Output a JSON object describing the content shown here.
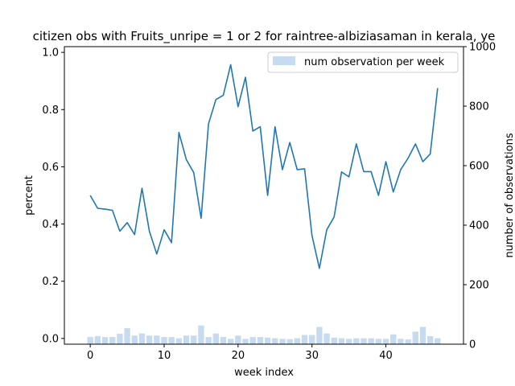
{
  "chart_data": {
    "type": "line",
    "title": "citizen obs with Fruits_unripe = 1 or 2 for raintree-albiziasaman in kerala, ye",
    "xlabel": "week index",
    "ylabel": "percent",
    "y2label": "number of observations",
    "xlim": [
      -3.5,
      50.5
    ],
    "ylim": [
      -0.02,
      1.02
    ],
    "y2lim": [
      0,
      1000
    ],
    "xticks": [
      "0",
      "10",
      "20",
      "30",
      "40"
    ],
    "yticks": [
      "0.0",
      "0.2",
      "0.4",
      "0.6",
      "0.8",
      "1.0"
    ],
    "y2ticks": [
      "0",
      "200",
      "400",
      "600",
      "800",
      "1000"
    ],
    "line_color": "#1f77b4",
    "bar_color": "#c6dbef",
    "legend": {
      "label": "num observation per week",
      "placement": "upper right"
    },
    "x": [
      0,
      1,
      2,
      3,
      4,
      5,
      6,
      7,
      8,
      9,
      10,
      11,
      12,
      13,
      14,
      15,
      16,
      17,
      18,
      19,
      20,
      21,
      22,
      23,
      24,
      25,
      26,
      27,
      28,
      29,
      30,
      31,
      32,
      33,
      34,
      35,
      36,
      37,
      38,
      39,
      40,
      41,
      42,
      43,
      44,
      45,
      46,
      47
    ],
    "series": [
      {
        "axis": "left",
        "kind": "line",
        "values": [
          0.5,
          0.455,
          0.452,
          0.448,
          0.375,
          0.405,
          0.363,
          0.525,
          0.375,
          0.295,
          0.38,
          0.335,
          0.72,
          0.625,
          0.58,
          0.42,
          0.75,
          0.835,
          0.85,
          0.957,
          0.81,
          0.913,
          0.725,
          0.74,
          0.5,
          0.74,
          0.59,
          0.685,
          0.59,
          0.593,
          0.36,
          0.245,
          0.38,
          0.425,
          0.582,
          0.565,
          0.68,
          0.583,
          0.583,
          0.5,
          0.618,
          0.512,
          0.59,
          0.63,
          0.68,
          0.618,
          0.645,
          0.875
        ]
      },
      {
        "name": "num observation per week",
        "axis": "right",
        "kind": "bar",
        "values": [
          24,
          27,
          24,
          24,
          35,
          54,
          29,
          36,
          29,
          29,
          24,
          24,
          20,
          29,
          29,
          63,
          24,
          36,
          24,
          18,
          29,
          18,
          24,
          24,
          22,
          20,
          18,
          17,
          20,
          31,
          31,
          58,
          36,
          22,
          20,
          18,
          20,
          20,
          20,
          18,
          18,
          33,
          18,
          16,
          42,
          58,
          27,
          20
        ]
      }
    ]
  }
}
